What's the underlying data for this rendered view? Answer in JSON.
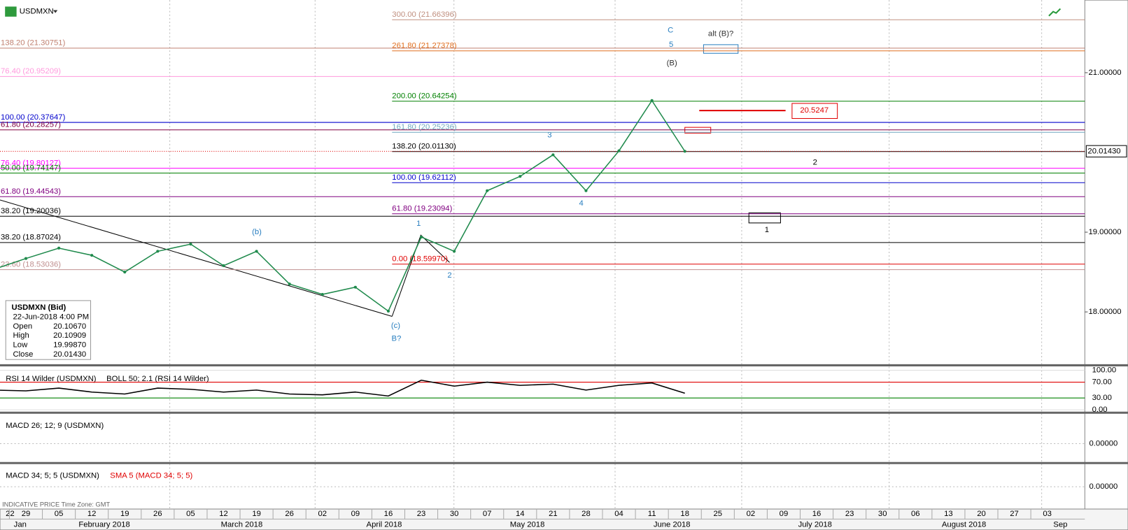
{
  "header": {
    "symbol": "USDMXN"
  },
  "chart_data": {
    "type": "line",
    "categories": [
      "22",
      "29",
      "05",
      "12",
      "19",
      "26",
      "05",
      "12",
      "19",
      "26",
      "02",
      "09",
      "16",
      "23",
      "30",
      "07",
      "14",
      "21",
      "28",
      "04",
      "11",
      "18",
      "25",
      "02",
      "09",
      "16",
      "23",
      "30",
      "06",
      "13",
      "20",
      "27",
      "03"
    ],
    "values": [
      18.53,
      18.67,
      18.8,
      18.71,
      18.5,
      18.76,
      18.85,
      18.58,
      18.76,
      18.35,
      18.22,
      18.31,
      18.01,
      18.94,
      18.76,
      19.52,
      19.7,
      19.97,
      19.52,
      20.02,
      20.65,
      20.0143,
      null,
      null,
      null,
      null,
      null,
      null,
      null,
      null,
      null,
      null,
      null
    ],
    "color": "#1f8a4c",
    "ylim": [
      17.34,
      21.91
    ],
    "yticks": [
      {
        "value": 18,
        "label": "18.00000"
      },
      {
        "value": 19,
        "label": "19.00000"
      },
      {
        "value": 21,
        "label": "21.00000"
      }
    ],
    "last": {
      "value": 20.0143,
      "label": "20.01430"
    }
  },
  "months": [
    "Jan",
    "February 2018",
    "March 2018",
    "April 2018",
    "May 2018",
    "June 2018",
    "July 2018",
    "August 2018",
    "Sep"
  ],
  "fib_left": [
    {
      "value": 21.30751,
      "label": "138.20 (21.30751)",
      "color": "#c08070"
    },
    {
      "value": 20.95209,
      "label": "76.40 (20.95209)",
      "color": "#ff99dd"
    },
    {
      "value": 20.37647,
      "label": "100.00 (20.37647)",
      "color": "#0000cc"
    },
    {
      "value": 20.28257,
      "label": "61.80 (20.28257)",
      "color": "#800040"
    },
    {
      "value": 19.80127,
      "label": "76.40 (19.80127)",
      "color": "#ff00ff"
    },
    {
      "value": 19.74147,
      "label": "50.00 (19.74147)",
      "color": "#008000"
    },
    {
      "value": 19.44543,
      "label": "61.80 (19.44543)",
      "color": "#800080"
    },
    {
      "value": 19.20036,
      "label": "38.20 (19.20036)",
      "color": "#000000"
    },
    {
      "value": 18.87024,
      "label": "38.20 (18.87024)",
      "color": "#000000"
    },
    {
      "value": 18.53036,
      "label": "23.60 (18.53036)",
      "color": "#c09090"
    }
  ],
  "fib_right": [
    {
      "value": 21.66396,
      "label": "300.00 (21.66396)",
      "color": "#c09080"
    },
    {
      "value": 21.27378,
      "label": "261.80 (21.27378)",
      "color": "#e07020"
    },
    {
      "value": 20.64254,
      "label": "200.00 (20.64254)",
      "color": "#008000"
    },
    {
      "value": 20.25236,
      "label": "161.80 (20.25236)",
      "color": "#70a8c0"
    },
    {
      "value": 20.0113,
      "label": "138.20 (20.01130)",
      "color": "#000000"
    },
    {
      "value": 19.62112,
      "label": "100.00 (19.62112)",
      "color": "#0000cc"
    },
    {
      "value": 19.23094,
      "label": "61.80 (19.23094)",
      "color": "#800080"
    },
    {
      "value": 18.5997,
      "label": "0.00 (18.59970)",
      "color": "#e00000"
    }
  ],
  "wave_labels": [
    "C",
    "5",
    "(B)",
    "alt (B)?",
    "3",
    "4",
    "1",
    "2",
    "(b)",
    "(c)",
    "B?",
    "2",
    "1"
  ],
  "callout": 20.5247,
  "info_box": {
    "title": "USDMXN (Bid)",
    "date": "22-Jun-2018 4:00 PM",
    "rows": [
      [
        "Open",
        "20.10670"
      ],
      [
        "High",
        "20.10909"
      ],
      [
        "Low",
        "19.99870"
      ],
      [
        "Close",
        "20.01430"
      ]
    ]
  },
  "rsi": {
    "title": "RSI 14 Wilder (USDMXN)",
    "overlay": "BOLL 50; 2.1 (RSI 14 Wilder)",
    "values": [
      50,
      48,
      55,
      45,
      40,
      55,
      52,
      45,
      50,
      40,
      38,
      45,
      35,
      75,
      60,
      70,
      62,
      65,
      50,
      62,
      68,
      42,
      null,
      null,
      null,
      null,
      null,
      null,
      null,
      null,
      null,
      null,
      null
    ],
    "ylim": [
      0,
      100
    ],
    "yticks": [
      {
        "value": 100,
        "label": "100.00"
      },
      {
        "value": 70,
        "label": "70.00"
      },
      {
        "value": 30,
        "label": "30.00"
      },
      {
        "value": 0,
        "label": "0.00"
      }
    ]
  },
  "macd1": {
    "title": "MACD 26; 12; 9 (USDMXN)",
    "yticks": [
      {
        "value": 0,
        "label": "0.00000"
      }
    ]
  },
  "macd2": {
    "title": "MACD 34; 5; 5 (USDMXN)",
    "overlay": "SMA 5 (MACD 34; 5; 5)",
    "yticks": [
      {
        "value": 0,
        "label": "0.00000"
      }
    ]
  },
  "footer": "INDICATIVE PRICE   Time Zone: GMT"
}
